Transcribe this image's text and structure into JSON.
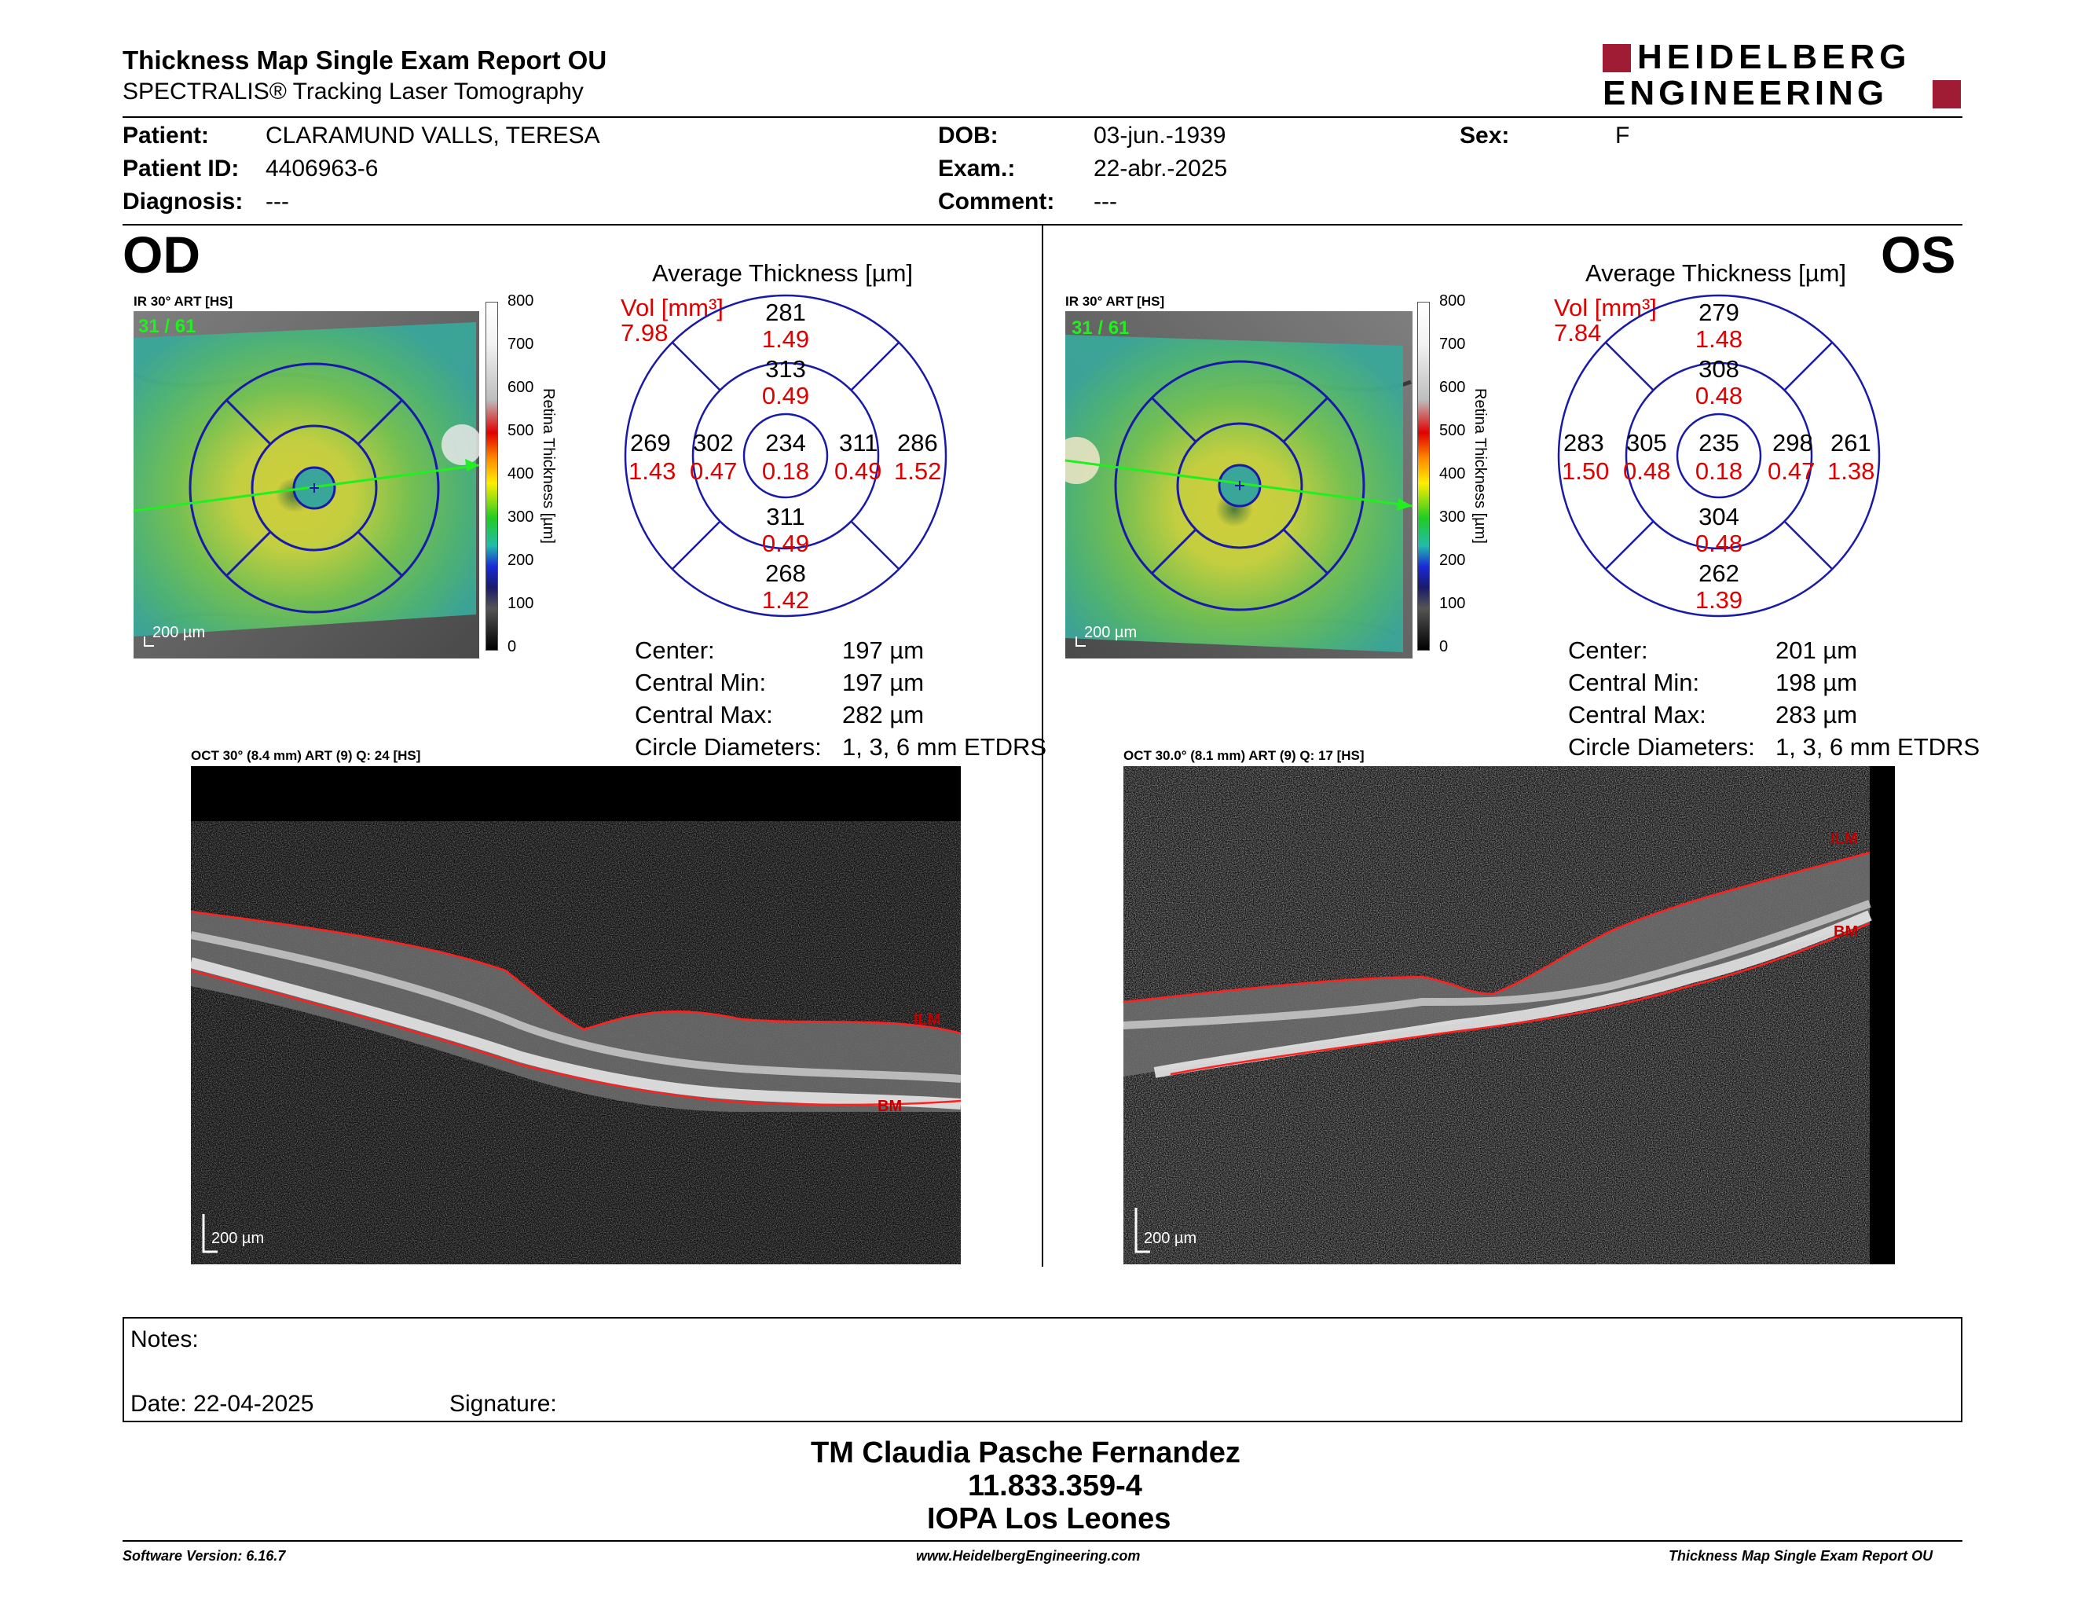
{
  "header": {
    "title": "Thickness Map Single Exam Report OU",
    "subtitle": "SPECTRALIS® Tracking Laser Tomography",
    "logo_line1": "HEIDELBERG",
    "logo_line2": "ENGINEERING"
  },
  "patient": {
    "patient_label": "Patient:",
    "patient_value": "CLARAMUND VALLS, TERESA",
    "id_label": "Patient ID:",
    "id_value": "4406963-6",
    "diagnosis_label": "Diagnosis:",
    "diagnosis_value": "---",
    "dob_label": "DOB:",
    "dob_value": "03-jun.-1939",
    "exam_label": "Exam.:",
    "exam_value": "22-abr.-2025",
    "comment_label": "Comment:",
    "comment_value": "---",
    "sex_label": "Sex:",
    "sex_value": "F"
  },
  "colorbar": {
    "ticks": [
      "800",
      "700",
      "600",
      "500",
      "400",
      "300",
      "200",
      "100",
      "0"
    ],
    "title": "Retina  Thickness [µm]"
  },
  "od": {
    "eye": "OD",
    "ir_title": "IR 30° ART [HS]",
    "frame": "31 / 61",
    "scale": "200 µm",
    "avg_title": "Average Thickness [µm]",
    "vol_label": "Vol [mm³]",
    "vol_value": "7.98",
    "sectors": {
      "outer_top": "281",
      "outer_top_vol": "1.49",
      "inner_top": "313",
      "inner_top_vol": "0.49",
      "outer_left": "269",
      "outer_left_vol": "1.43",
      "inner_left": "302",
      "inner_left_vol": "0.47",
      "center": "234",
      "center_vol": "0.18",
      "inner_right": "311",
      "inner_right_vol": "0.49",
      "outer_right": "286",
      "outer_right_vol": "1.52",
      "inner_bottom": "311",
      "inner_bottom_vol": "0.49",
      "outer_bottom": "268",
      "outer_bottom_vol": "1.42"
    },
    "stats": {
      "center_label": "Center:",
      "center_value": "197 µm",
      "min_label": "Central Min:",
      "min_value": "197 µm",
      "max_label": "Central Max:",
      "max_value": "282 µm",
      "diam_label": "Circle Diameters:",
      "diam_value": "1, 3, 6 mm ETDRS"
    },
    "oct_title": "OCT 30° (8.4 mm) ART (9) Q: 24 [HS]",
    "oct_scale": "200 µm",
    "ilm": "ILM",
    "bm": "BM"
  },
  "os": {
    "eye": "OS",
    "ir_title": "IR 30° ART [HS]",
    "frame": "31 / 61",
    "scale": "200 µm",
    "avg_title": "Average Thickness [µm]",
    "vol_label": "Vol [mm³]",
    "vol_value": "7.84",
    "sectors": {
      "outer_top": "279",
      "outer_top_vol": "1.48",
      "inner_top": "308",
      "inner_top_vol": "0.48",
      "outer_left": "283",
      "outer_left_vol": "1.50",
      "inner_left": "305",
      "inner_left_vol": "0.48",
      "center": "235",
      "center_vol": "0.18",
      "inner_right": "298",
      "inner_right_vol": "0.47",
      "outer_right": "261",
      "outer_right_vol": "1.38",
      "inner_bottom": "304",
      "inner_bottom_vol": "0.48",
      "outer_bottom": "262",
      "outer_bottom_vol": "1.39"
    },
    "stats": {
      "center_label": "Center:",
      "center_value": "201 µm",
      "min_label": "Central Min:",
      "min_value": "198 µm",
      "max_label": "Central Max:",
      "max_value": "283 µm",
      "diam_label": "Circle Diameters:",
      "diam_value": "1, 3, 6 mm ETDRS"
    },
    "oct_title": "OCT 30.0° (8.1 mm) ART (9) Q: 17 [HS]",
    "oct_scale": "200 µm",
    "ilm": "ILM",
    "bm": "BM"
  },
  "notes": {
    "notes_label": "Notes:",
    "date_label": "Date: 22-04-2025",
    "signature_label": "Signature:"
  },
  "signature_block": {
    "line1": "TM Claudia Pasche Fernandez",
    "line2": "11.833.359-4",
    "line3": "IOPA Los Leones"
  },
  "footer": {
    "left": "Software Version: 6.16.7",
    "center": "www.HeidelbergEngineering.com",
    "right": "Thickness Map Single Exam Report OU"
  },
  "colors": {
    "red": "#e00000",
    "grid_blue": "#1a1aa8",
    "logo_red": "#a01c34",
    "scan_green": "#22ee22"
  }
}
